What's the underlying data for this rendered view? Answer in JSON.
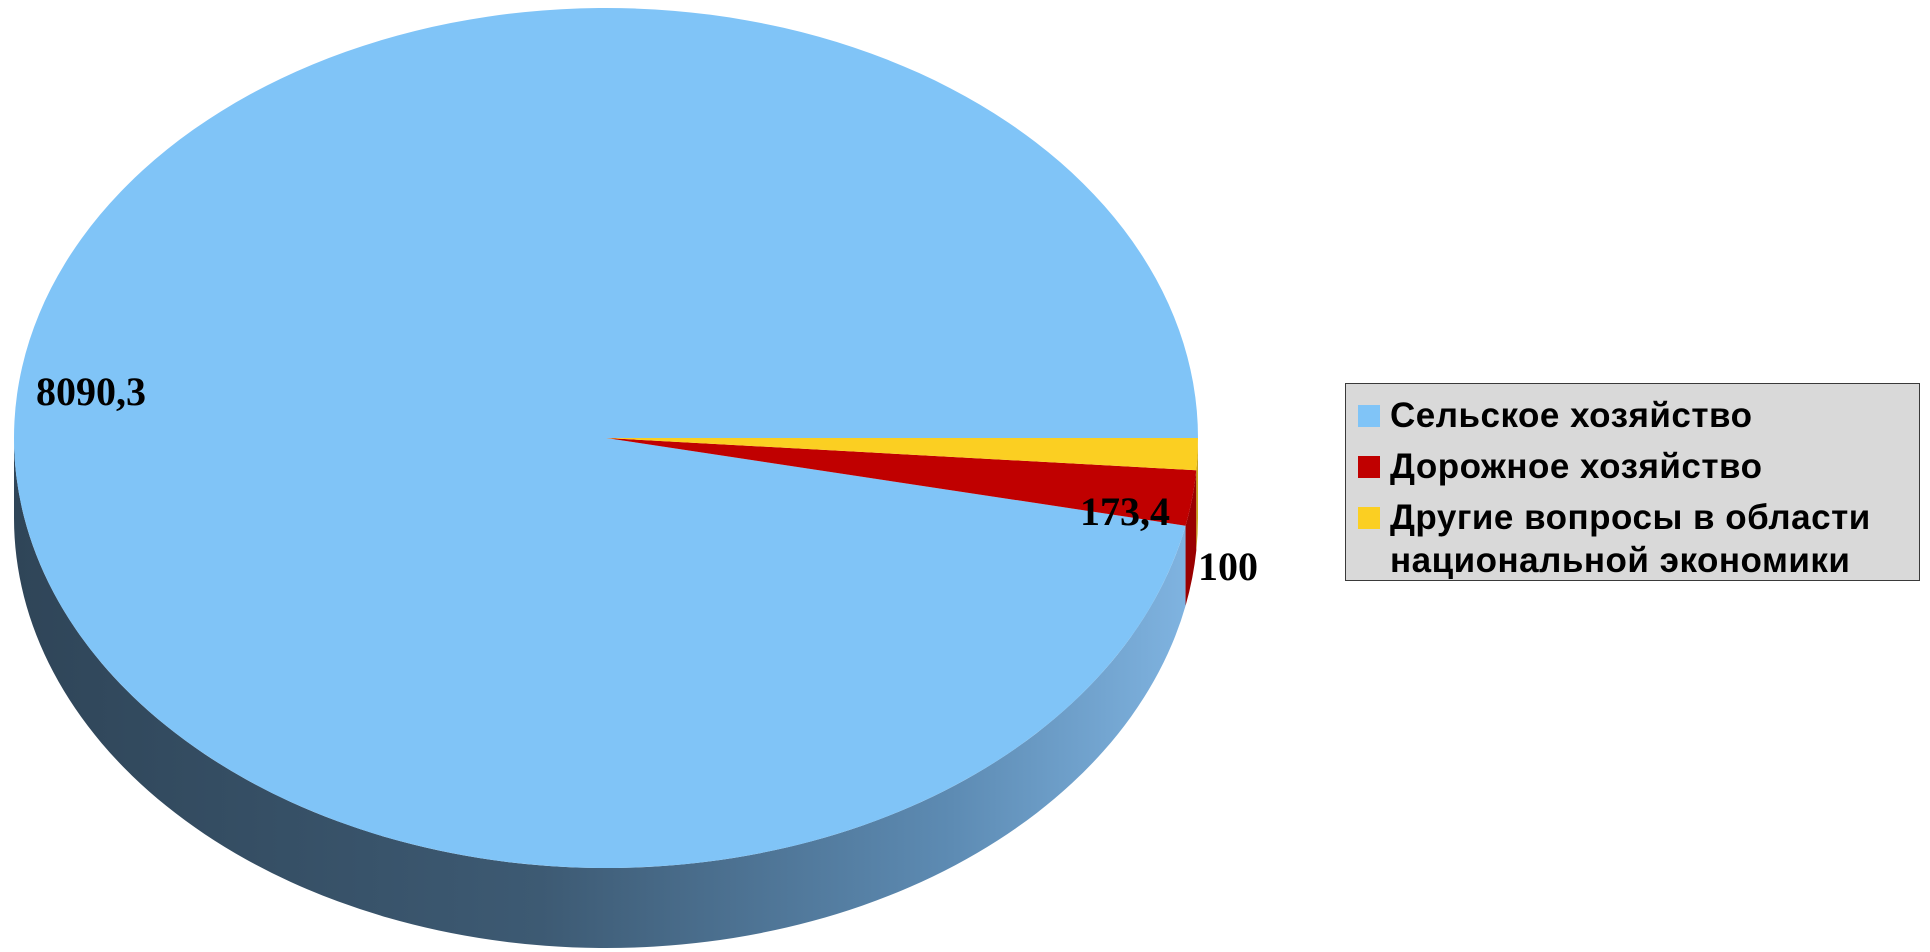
{
  "chart_data": {
    "type": "pie",
    "title": "",
    "categories": [
      "Сельское хозяйство",
      "Дорожное хозяйство",
      "Другие вопросы в области национальной экономики"
    ],
    "values": [
      8090.3,
      173.4,
      100
    ],
    "value_labels": [
      "8090,3",
      "173,4",
      "100"
    ],
    "colors": [
      "#80c4f7",
      "#c00000",
      "#fbcf22"
    ],
    "legend_position": "right",
    "style": "3d"
  },
  "legend": {
    "items": [
      {
        "label": "Сельское хозяйство",
        "color": "#80c4f7"
      },
      {
        "label": "Дорожное хозяйство",
        "color": "#c00000"
      },
      {
        "label": "Другие вопросы в области национальной экономики",
        "color": "#fbcf22"
      }
    ]
  }
}
